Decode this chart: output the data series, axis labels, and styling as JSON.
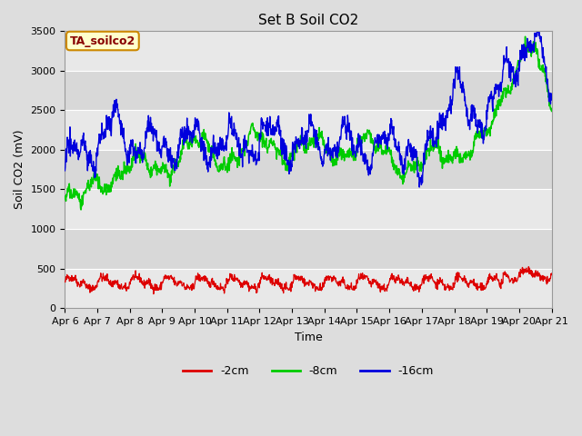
{
  "title": "Set B Soil CO2",
  "xlabel": "Time",
  "ylabel": "Soil CO2 (mV)",
  "ylim": [
    0,
    3500
  ],
  "yticks": [
    0,
    500,
    1000,
    1500,
    2000,
    2500,
    3000,
    3500
  ],
  "xtick_labels": [
    "Apr 6",
    "Apr 7",
    "Apr 8",
    "Apr 9",
    "Apr 10",
    "Apr 11",
    "Apr 12",
    "Apr 13",
    "Apr 14",
    "Apr 15",
    "Apr 16",
    "Apr 17",
    "Apr 18",
    "Apr 19",
    "Apr 20",
    "Apr 21"
  ],
  "annotation_text": "TA_soilco2",
  "annotation_box_facecolor": "#ffffcc",
  "annotation_box_edgecolor": "#cc8800",
  "annotation_text_color": "#880000",
  "line_red_label": "-2cm",
  "line_green_label": "-8cm",
  "line_blue_label": "-16cm",
  "line_red_color": "#dd0000",
  "line_green_color": "#00cc00",
  "line_blue_color": "#0000dd",
  "fig_bg_color": "#dddddd",
  "plot_bg_color": "#e8e8e8",
  "band_light_color": "#e8e8e8",
  "band_dark_color": "#d8d8d8",
  "grid_color": "#ffffff",
  "title_fontsize": 11,
  "axis_label_fontsize": 9,
  "tick_fontsize": 8,
  "legend_fontsize": 9
}
